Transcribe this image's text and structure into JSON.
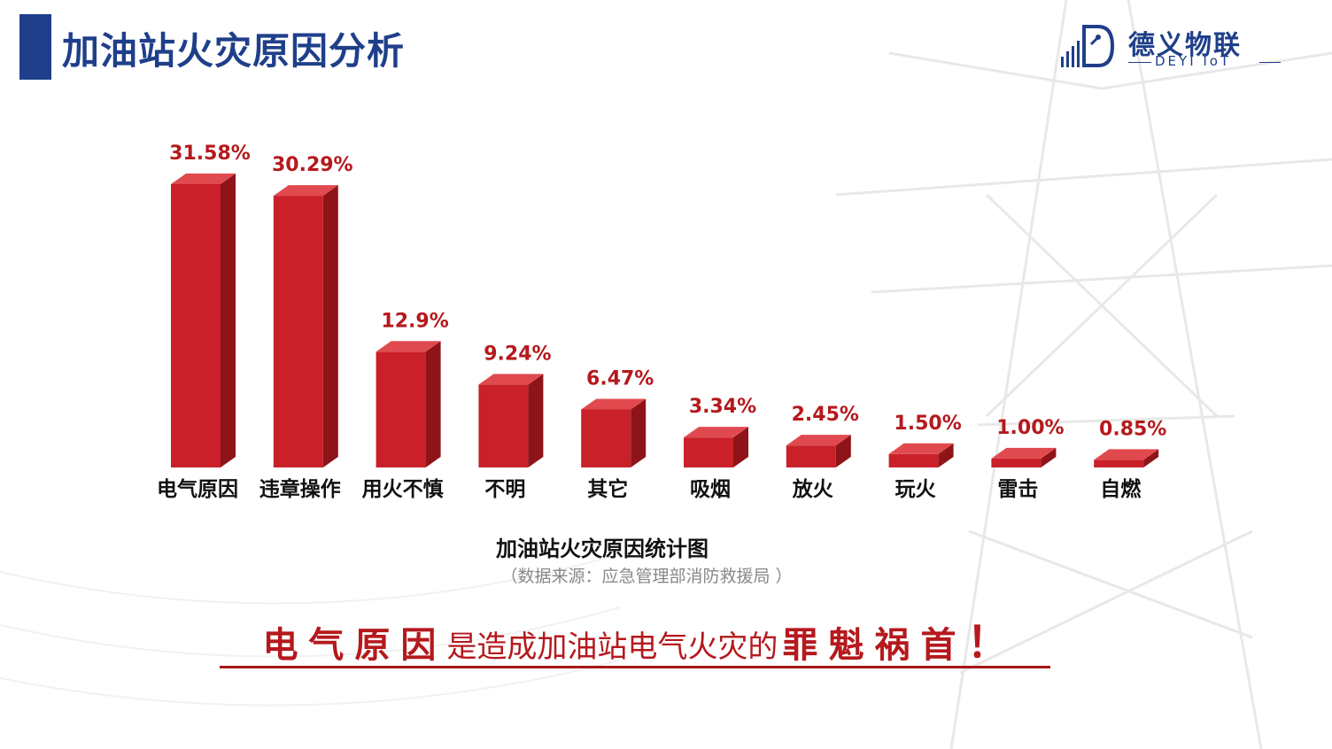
{
  "slide": {
    "title": "加油站火灾原因分析",
    "accent_color": "#1f3f8a",
    "bar_color": "#c9202a"
  },
  "logo": {
    "cn": "德义物联",
    "en": "DEYI IoT",
    "icon": "d-circuit-logo-icon"
  },
  "chart_data": {
    "type": "bar",
    "title": "加油站火灾原因统计图",
    "categories": [
      "电气原因",
      "违章操作",
      "用火不慎",
      "不明",
      "其它",
      "吸烟",
      "放火",
      "玩火",
      "雷击",
      "自燃"
    ],
    "values": [
      31.58,
      30.29,
      12.9,
      9.24,
      6.47,
      3.34,
      2.45,
      1.5,
      1.0,
      0.85
    ],
    "value_labels": [
      "31.58%",
      "30.29%",
      "12.9%",
      "9.24%",
      "6.47%",
      "3.34%",
      "2.45%",
      "1.50%",
      "1.00%",
      "0.85%"
    ],
    "unit": "%",
    "ylim": [
      0,
      31.58
    ],
    "grid": false,
    "legend": "none",
    "style": "3d-bar"
  },
  "source": "（数据来源：应急管理部消防救援局 ）",
  "conclusion": {
    "strong_a": "电气原因",
    "middle": "是造成加油站电气火灾的",
    "strong_b": "罪魁祸首",
    "exclamation": "！"
  }
}
